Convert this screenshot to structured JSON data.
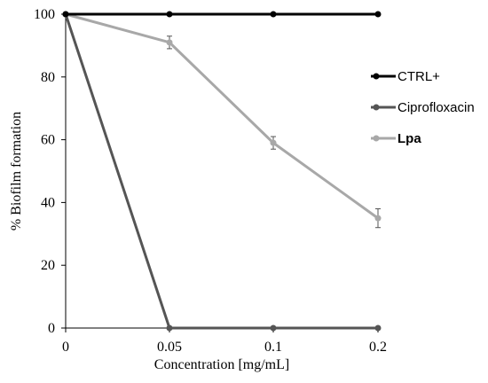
{
  "chart_data": {
    "type": "line",
    "x": [
      "0",
      "0.05",
      "0.1",
      "0.2"
    ],
    "xlabel": "Concentration [mg/mL]",
    "ylabel": "% Biofilm formation",
    "ylim": [
      0,
      100
    ],
    "yticks": [
      "0",
      "20",
      "40",
      "60",
      "80",
      "100"
    ],
    "grid": false,
    "legend": "right",
    "series": [
      {
        "name": "CTRL+",
        "values": [
          100,
          100,
          100,
          100
        ],
        "errors": [
          0,
          0,
          0,
          0
        ],
        "color": "#000000",
        "bold": false
      },
      {
        "name": "Ciprofloxacin",
        "values": [
          100,
          0,
          0,
          0
        ],
        "errors": [
          0,
          0,
          0,
          0
        ],
        "color": "#555555",
        "bold": false
      },
      {
        "name": "Lpa",
        "values": [
          100,
          91,
          59,
          35
        ],
        "errors": [
          0,
          2,
          2,
          3
        ],
        "color": "#a8a8a8",
        "bold": true
      }
    ]
  }
}
